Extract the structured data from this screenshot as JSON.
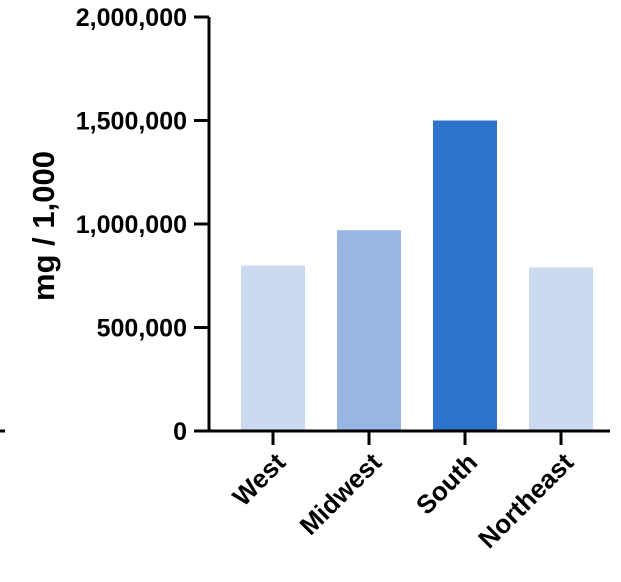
{
  "chart_data": {
    "type": "bar",
    "title": "",
    "xlabel": "",
    "ylabel": "mg / 1,000",
    "categories": [
      "West",
      "Midwest",
      "South",
      "Northeast"
    ],
    "values": [
      800000,
      970000,
      1500000,
      790000
    ],
    "bar_colors": [
      "#ccdaf0",
      "#98b6e3",
      "#2e73cb",
      "#ccdaf0"
    ],
    "ylim": [
      0,
      2000000
    ],
    "yticks": [
      0,
      500000,
      1000000,
      1500000,
      2000000
    ],
    "ytick_labels": [
      "0",
      "500,000",
      "1,000,000",
      "1,500,000",
      "2,000,000"
    ],
    "grid": false,
    "legend": "none"
  }
}
